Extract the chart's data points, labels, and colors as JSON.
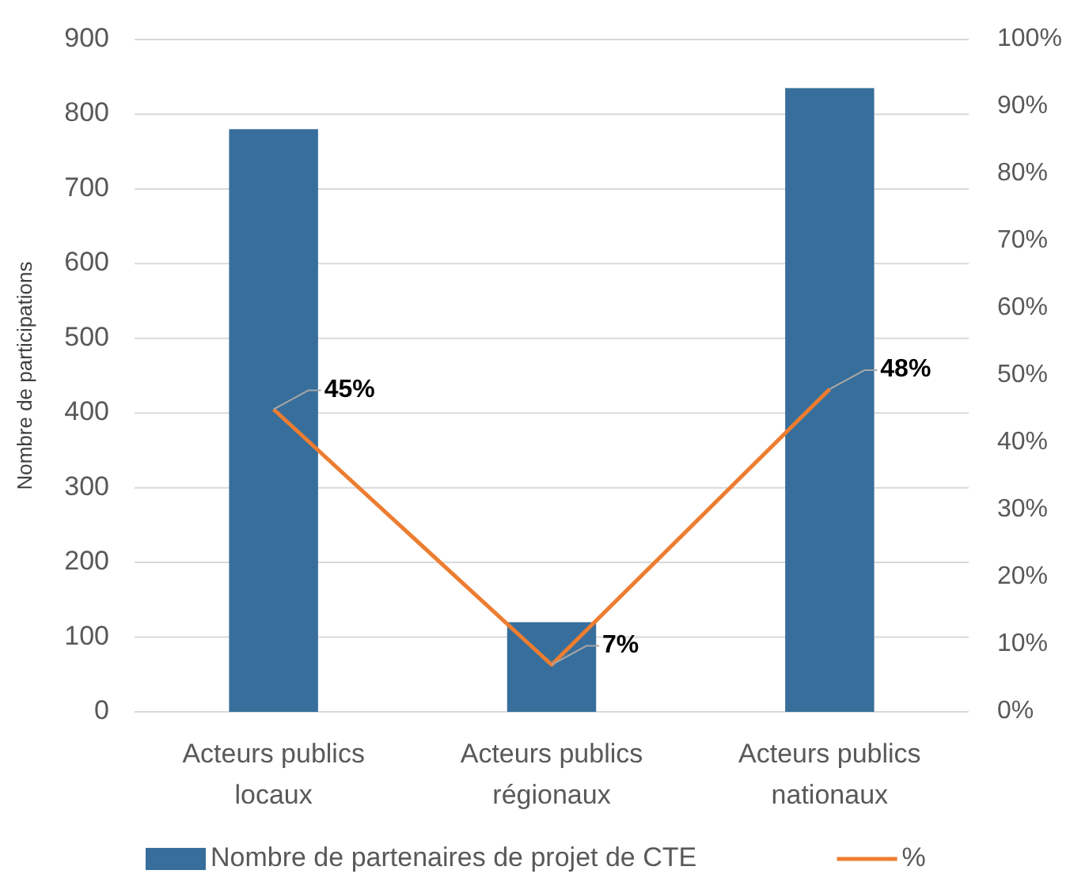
{
  "chart_data": {
    "type": "bar",
    "ylabel": "Nombre de participations",
    "categories": [
      "Acteurs publics locaux",
      "Acteurs publics régionaux",
      "Acteurs publics nationaux"
    ],
    "series": [
      {
        "name": "Nombre de partenaires de projet de CTE",
        "color": "#376e9b",
        "values": [
          780,
          120,
          835
        ]
      },
      {
        "name": "%",
        "type": "line",
        "axis": "y2",
        "color": "#ed7d31",
        "values": [
          45,
          7,
          48
        ],
        "value_labels": [
          "45%",
          "7%",
          "48%"
        ],
        "marker": "none"
      }
    ],
    "ylim": [
      0,
      900
    ],
    "yticks": [
      0,
      100,
      200,
      300,
      400,
      500,
      600,
      700,
      800,
      900
    ],
    "y2lim": [
      0,
      100
    ],
    "y2ticks": [
      {
        "value": 0,
        "label": "0%"
      },
      {
        "value": 10,
        "label": "10%"
      },
      {
        "value": 20,
        "label": "20%"
      },
      {
        "value": 30,
        "label": "30%"
      },
      {
        "value": 40,
        "label": "40%"
      },
      {
        "value": 50,
        "label": "50%"
      },
      {
        "value": 60,
        "label": "60%"
      },
      {
        "value": 70,
        "label": "70%"
      },
      {
        "value": 80,
        "label": "80%"
      },
      {
        "value": 90,
        "label": "90%"
      },
      {
        "value": 100,
        "label": "100%"
      }
    ],
    "grid": "y",
    "legend": "bottom"
  }
}
